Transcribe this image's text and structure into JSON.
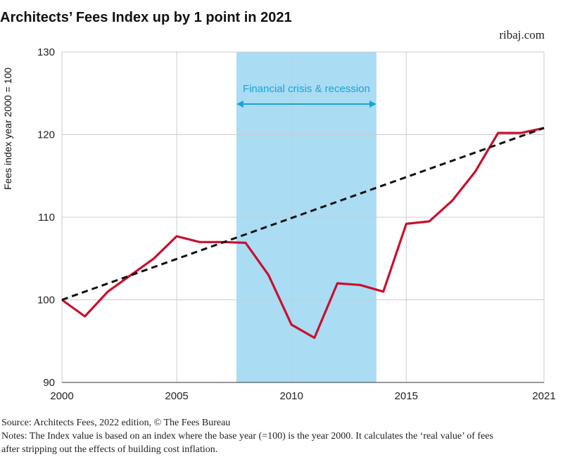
{
  "header": {
    "title": "Architects’ Fees Index up by 1 point in 2021",
    "site": "ribaj.com"
  },
  "footer": {
    "source": "Source:  Architects Fees, 2022 edition, © The Fees Bureau",
    "notes_line1": "Notes: The Index value is based on an index where the base year (=100) is the year 2000. It calculates the ‘real value’ of fees",
    "notes_line2": "after stripping out the effects of building cost inflation."
  },
  "chart_data": {
    "type": "line",
    "title": "Architects’ Fees Index up by 1 point in 2021",
    "xlabel": "",
    "ylabel": "Fees index year 2000 = 100",
    "xlim": [
      2000,
      2021
    ],
    "ylim": [
      90,
      130
    ],
    "x_ticks": [
      2000,
      2005,
      2010,
      2015,
      2021
    ],
    "y_ticks": [
      90,
      100,
      110,
      120,
      130
    ],
    "grid": true,
    "series": [
      {
        "color": "#c8102e",
        "x": [
          2000,
          2001,
          2002,
          2003,
          2004,
          2005,
          2006,
          2007,
          2008,
          2009,
          2010,
          2011,
          2012,
          2013,
          2014,
          2015,
          2016,
          2017,
          2018,
          2019,
          2020,
          2021
        ],
        "values": [
          100,
          98.0,
          101.0,
          103.0,
          105.0,
          107.7,
          107.0,
          107.0,
          106.9,
          103.0,
          97.0,
          95.4,
          102.0,
          101.8,
          101.0,
          109.2,
          109.5,
          112.0,
          115.5,
          120.2,
          120.2,
          120.8
        ]
      },
      {
        "color": "#111111",
        "style": "dashed",
        "x": [
          2000,
          2021
        ],
        "values": [
          100,
          120.8
        ]
      }
    ],
    "annotations": [
      {
        "label": "Financial crisis & recession",
        "x_start": 2007.6,
        "x_end": 2013.7,
        "fill": "#aadcf4",
        "arrow_color": "#1aa3d9"
      }
    ]
  }
}
